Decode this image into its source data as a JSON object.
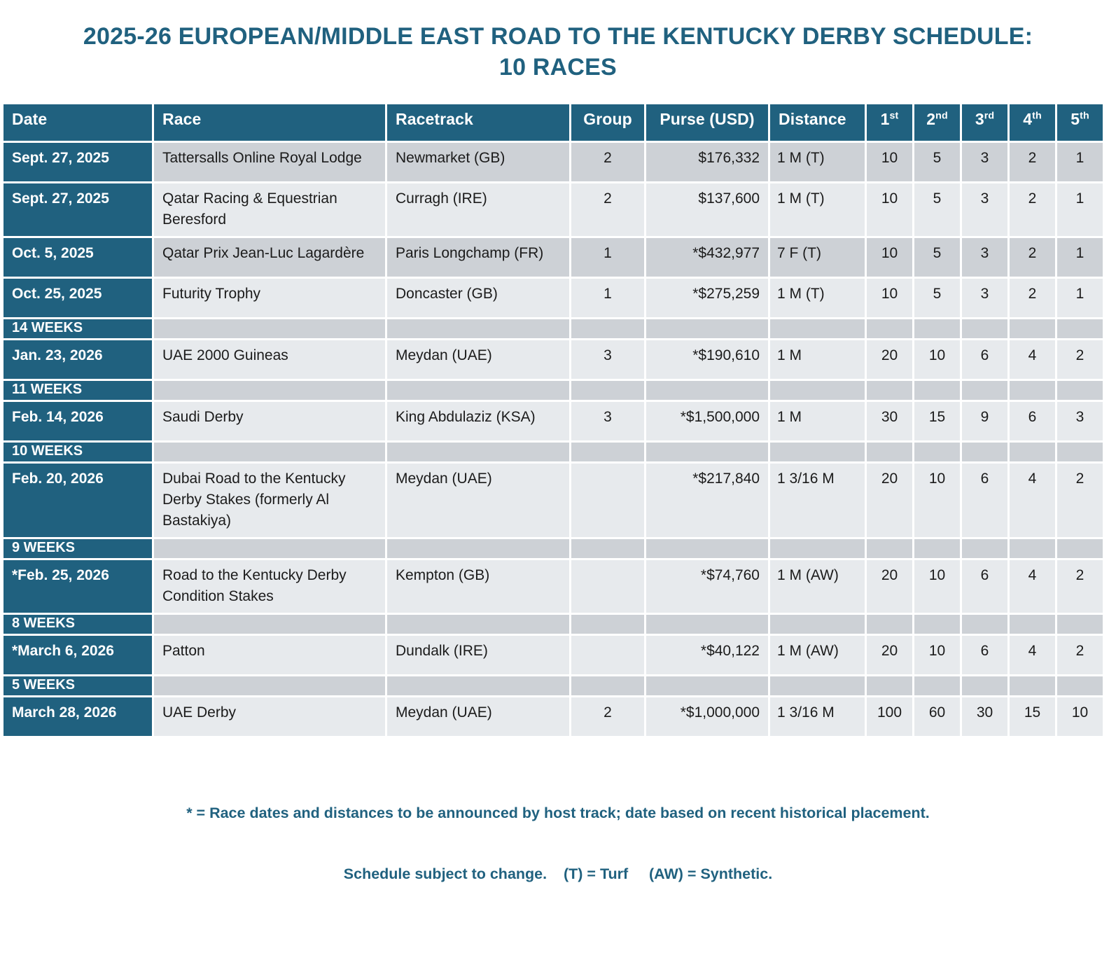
{
  "title": {
    "line1": "2025-26 EUROPEAN/MIDDLE EAST ROAD TO THE KENTUCKY DERBY SCHEDULE:",
    "line2": "10 RACES"
  },
  "colors": {
    "teal": "#20617f",
    "row_dark": "#cdd1d6",
    "row_light": "#e7eaed",
    "text": "#1b1b1b"
  },
  "table": {
    "headers": [
      {
        "label": "Date"
      },
      {
        "label": "Race"
      },
      {
        "label": "Racetrack"
      },
      {
        "label": "Group"
      },
      {
        "label": "Purse (USD)"
      },
      {
        "label": "Distance"
      },
      {
        "label": "1",
        "sup": "st"
      },
      {
        "label": "2",
        "sup": "nd"
      },
      {
        "label": "3",
        "sup": "rd"
      },
      {
        "label": "4",
        "sup": "th"
      },
      {
        "label": "5",
        "sup": "th"
      }
    ],
    "rows": [
      {
        "type": "race",
        "shade": "dark",
        "date": "Sept. 27, 2025",
        "race": "Tattersalls Online Royal Lodge",
        "racetrack": "Newmarket (GB)",
        "group": "2",
        "purse": "$176,332",
        "distance": "1 M (T)",
        "places": [
          "10",
          "5",
          "3",
          "2",
          "1"
        ]
      },
      {
        "type": "race",
        "shade": "light",
        "date": "Sept. 27, 2025",
        "race": "Qatar Racing & Equestrian Beresford",
        "racetrack": "Curragh (IRE)",
        "group": "2",
        "purse": "$137,600",
        "distance": "1 M (T)",
        "places": [
          "10",
          "5",
          "3",
          "2",
          "1"
        ]
      },
      {
        "type": "race",
        "shade": "dark",
        "date": "Oct. 5, 2025",
        "race": "Qatar Prix Jean-Luc Lagardère",
        "racetrack": "Paris Longchamp (FR)",
        "group": "1",
        "purse": "*$432,977",
        "distance": "7 F (T)",
        "places": [
          "10",
          "5",
          "3",
          "2",
          "1"
        ]
      },
      {
        "type": "race",
        "shade": "light",
        "date": "Oct. 25, 2025",
        "race": "Futurity Trophy",
        "racetrack": "Doncaster (GB)",
        "group": "1",
        "purse": "*$275,259",
        "distance": "1 M (T)",
        "places": [
          "10",
          "5",
          "3",
          "2",
          "1"
        ]
      },
      {
        "type": "weeks",
        "shade": "dark",
        "date": "14 WEEKS"
      },
      {
        "type": "race",
        "shade": "light",
        "date": "Jan. 23, 2026",
        "race": "UAE 2000 Guineas",
        "racetrack": "Meydan (UAE)",
        "group": "3",
        "purse": "*$190,610",
        "distance": "1 M",
        "places": [
          "20",
          "10",
          "6",
          "4",
          "2"
        ]
      },
      {
        "type": "weeks",
        "shade": "dark",
        "date": "11 WEEKS"
      },
      {
        "type": "race",
        "shade": "light",
        "date": "Feb. 14, 2026",
        "race": "Saudi Derby",
        "racetrack": "King Abdulaziz (KSA)",
        "group": "3",
        "purse": "*$1,500,000",
        "distance": "1 M",
        "places": [
          "30",
          "15",
          "9",
          "6",
          "3"
        ]
      },
      {
        "type": "weeks",
        "shade": "dark",
        "date": "10 WEEKS"
      },
      {
        "type": "race",
        "shade": "light",
        "date": "Feb. 20, 2026",
        "race": "Dubai Road to the Kentucky Derby Stakes (formerly Al Bastakiya)",
        "racetrack": "Meydan (UAE)",
        "group": "",
        "purse": "*$217,840",
        "distance": "1 3/16 M",
        "places": [
          "20",
          "10",
          "6",
          "4",
          "2"
        ]
      },
      {
        "type": "weeks",
        "shade": "dark",
        "date": "9 WEEKS"
      },
      {
        "type": "race",
        "shade": "light",
        "date": "*Feb. 25, 2026",
        "race": "Road to the Kentucky Derby Condition Stakes",
        "racetrack": "Kempton (GB)",
        "group": "",
        "purse": "*$74,760",
        "distance": "1 M (AW)",
        "places": [
          "20",
          "10",
          "6",
          "4",
          "2"
        ]
      },
      {
        "type": "weeks",
        "shade": "dark",
        "date": "8 WEEKS"
      },
      {
        "type": "race",
        "shade": "light",
        "date": "*March 6, 2026",
        "race": "Patton",
        "racetrack": "Dundalk (IRE)",
        "group": "",
        "purse": "*$40,122",
        "distance": "1 M (AW)",
        "places": [
          "20",
          "10",
          "6",
          "4",
          "2"
        ]
      },
      {
        "type": "weeks",
        "shade": "dark",
        "date": "5 WEEKS"
      },
      {
        "type": "race",
        "shade": "light",
        "date": "March 28, 2026",
        "race": "UAE Derby",
        "racetrack": "Meydan (UAE)",
        "group": "2",
        "purse": "*$1,000,000",
        "distance": "1 3/16 M",
        "places": [
          "100",
          "60",
          "30",
          "15",
          "10"
        ]
      }
    ]
  },
  "footnotes": {
    "line1": "* = Race dates and distances to be announced by host track; date based on recent historical placement.",
    "line2": "Schedule subject to change.    (T) = Turf     (AW) = Synthetic."
  }
}
